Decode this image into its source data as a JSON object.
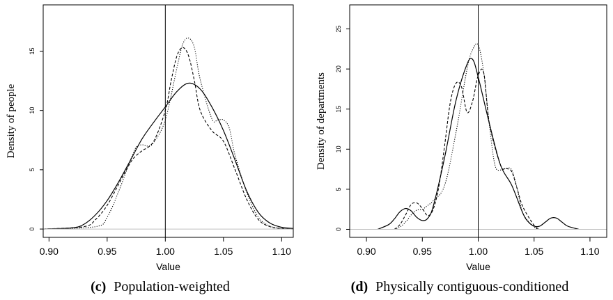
{
  "chart_data": [
    {
      "type": "line",
      "caption_prefix": "(c)",
      "caption_text": "Population-weighted",
      "xlabel": "Value",
      "ylabel": "Density of people",
      "xlim": [
        0.895,
        1.11
      ],
      "ylim": [
        -0.7,
        18.9
      ],
      "xticks": [
        0.9,
        0.95,
        1.0,
        1.05,
        1.1
      ],
      "xtick_labels": [
        "0.90",
        "0.95",
        "1.00",
        "1.05",
        "1.10"
      ],
      "yticks": [
        0,
        5,
        10,
        15
      ],
      "ytick_labels": [
        "0",
        "5",
        "10",
        "15"
      ],
      "vline": 1.0,
      "hline": 0,
      "grid": false,
      "series": [
        {
          "style": "solid",
          "x": [
            0.895,
            0.92,
            0.93,
            0.94,
            0.95,
            0.96,
            0.97,
            0.98,
            0.99,
            1.0,
            1.01,
            1.02,
            1.03,
            1.04,
            1.05,
            1.06,
            1.07,
            1.08,
            1.09,
            1.1,
            1.11
          ],
          "y": [
            0.0,
            0.1,
            0.4,
            1.2,
            2.4,
            4.0,
            5.8,
            7.6,
            9.0,
            10.3,
            11.6,
            12.3,
            11.8,
            10.3,
            8.3,
            5.8,
            3.2,
            1.4,
            0.5,
            0.15,
            0.05
          ]
        },
        {
          "style": "dashed",
          "x": [
            0.895,
            0.93,
            0.94,
            0.95,
            0.96,
            0.97,
            0.975,
            0.98,
            0.99,
            1.0,
            1.005,
            1.01,
            1.015,
            1.02,
            1.025,
            1.03,
            1.04,
            1.05,
            1.06,
            1.07,
            1.08,
            1.09,
            1.1,
            1.11
          ],
          "y": [
            0.0,
            0.2,
            0.8,
            2.0,
            3.8,
            5.6,
            6.2,
            6.6,
            7.4,
            10.0,
            12.5,
            14.6,
            15.3,
            14.6,
            12.5,
            10.0,
            8.3,
            7.4,
            5.0,
            2.5,
            0.8,
            0.2,
            0.05,
            0.0
          ]
        },
        {
          "style": "dotted",
          "x": [
            0.895,
            0.94,
            0.95,
            0.96,
            0.97,
            0.975,
            0.98,
            0.985,
            0.99,
            1.0,
            1.01,
            1.015,
            1.02,
            1.025,
            1.03,
            1.04,
            1.045,
            1.05,
            1.055,
            1.06,
            1.07,
            1.08,
            1.09,
            1.1,
            1.11
          ],
          "y": [
            0.0,
            0.2,
            1.0,
            3.2,
            5.8,
            6.9,
            7.1,
            7.0,
            7.3,
            9.2,
            13.6,
            15.6,
            16.1,
            15.3,
            12.6,
            9.3,
            9.2,
            9.2,
            8.5,
            6.2,
            3.1,
            1.0,
            0.25,
            0.05,
            0.0
          ]
        }
      ]
    },
    {
      "type": "line",
      "caption_prefix": "(d)",
      "caption_text": "Physically contiguous-conditioned",
      "xlabel": "Value",
      "ylabel": "Density of departments",
      "xlim": [
        0.885,
        1.115
      ],
      "ylim": [
        -1.0,
        28.0
      ],
      "xticks": [
        0.9,
        0.95,
        1.0,
        1.05,
        1.1
      ],
      "xtick_labels": [
        "0.90",
        "0.95",
        "1.00",
        "1.05",
        "1.10"
      ],
      "yticks": [
        0,
        5,
        10,
        15,
        20,
        25
      ],
      "ytick_labels": [
        "0",
        "5",
        "10",
        "15",
        "20",
        "25"
      ],
      "vline": 1.0,
      "hline": 0,
      "grid": false,
      "series": [
        {
          "style": "solid",
          "x": [
            0.91,
            0.92,
            0.925,
            0.93,
            0.935,
            0.94,
            0.945,
            0.95,
            0.955,
            0.96,
            0.97,
            0.98,
            0.99,
            0.995,
            1.0,
            1.01,
            1.02,
            1.03,
            1.04,
            1.045,
            1.05,
            1.055,
            1.06,
            1.065,
            1.07,
            1.075,
            1.08,
            1.09
          ],
          "y": [
            0.0,
            0.6,
            1.3,
            2.2,
            2.6,
            2.3,
            1.5,
            1.1,
            1.4,
            3.0,
            9.0,
            16.0,
            20.6,
            21.2,
            19.0,
            13.2,
            8.0,
            5.5,
            2.0,
            0.9,
            0.4,
            0.4,
            0.9,
            1.4,
            1.4,
            0.9,
            0.4,
            0.0
          ]
        },
        {
          "style": "dashed",
          "x": [
            0.925,
            0.93,
            0.935,
            0.94,
            0.945,
            0.95,
            0.955,
            0.96,
            0.965,
            0.97,
            0.975,
            0.98,
            0.985,
            0.99,
            0.995,
            1.0,
            1.005,
            1.01,
            1.02,
            1.025,
            1.03,
            1.035,
            1.04,
            1.05,
            1.055
          ],
          "y": [
            0.0,
            0.6,
            1.8,
            3.1,
            3.3,
            2.6,
            1.7,
            2.6,
            5.5,
            10.5,
            15.8,
            18.2,
            17.8,
            14.6,
            16.0,
            19.2,
            19.5,
            13.2,
            8.0,
            7.6,
            7.2,
            5.0,
            2.8,
            0.5,
            0.0
          ]
        },
        {
          "style": "dotted",
          "x": [
            0.925,
            0.93,
            0.935,
            0.94,
            0.945,
            0.95,
            0.955,
            0.96,
            0.97,
            0.98,
            0.99,
            0.995,
            1.0,
            1.005,
            1.01,
            1.015,
            1.02,
            1.025,
            1.03,
            1.035,
            1.04,
            1.05,
            1.055
          ],
          "y": [
            0.0,
            0.3,
            0.9,
            1.8,
            2.4,
            2.5,
            3.0,
            3.6,
            5.5,
            12.0,
            20.0,
            22.4,
            23.0,
            19.5,
            13.0,
            8.0,
            7.4,
            7.6,
            7.4,
            5.0,
            2.0,
            0.3,
            0.0
          ]
        }
      ]
    }
  ]
}
